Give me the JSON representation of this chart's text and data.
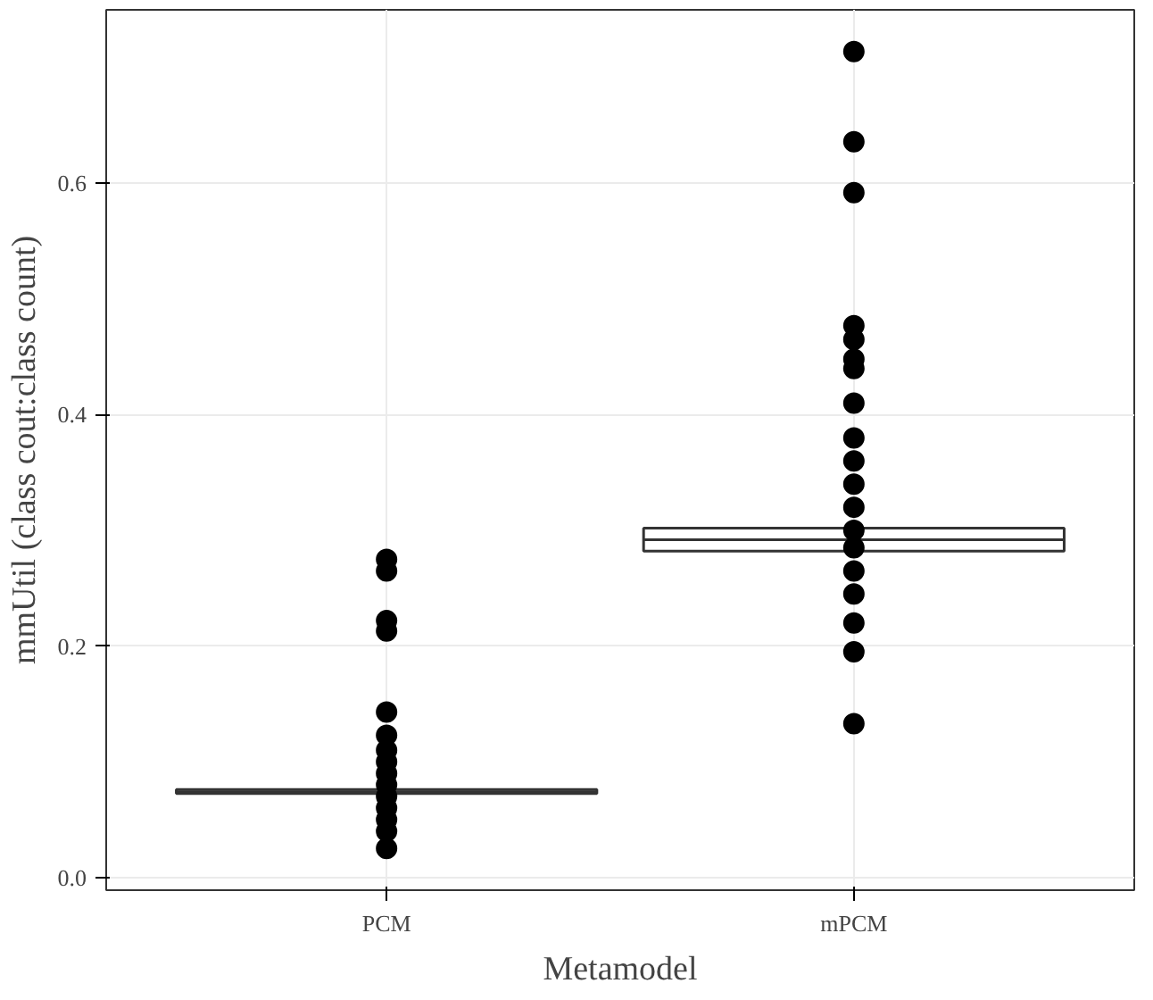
{
  "chart_data": {
    "type": "box",
    "xlabel": "Metamodel",
    "ylabel": "mmUtil (class cout:class count)",
    "categories": [
      "PCM",
      "mPCM"
    ],
    "boxes": [
      {
        "low": 0.0725,
        "q1": 0.0725,
        "median": 0.074,
        "q3": 0.076,
        "high": 0.076
      },
      {
        "low": 0.282,
        "q1": 0.282,
        "median": 0.292,
        "q3": 0.302,
        "high": 0.302
      }
    ],
    "ylim": [
      -0.011,
      0.75
    ],
    "yticks": [
      {
        "value": 0,
        "label": "0.0"
      },
      0.2,
      0.4,
      0.6
    ],
    "grid": true,
    "series": [
      {
        "type": "scatter",
        "color": "#000000",
        "marker": "circle",
        "x": [
          "PCM",
          "PCM",
          "PCM",
          "PCM",
          "PCM",
          "PCM",
          "PCM",
          "PCM",
          "PCM",
          "PCM",
          "PCM",
          "PCM",
          "PCM",
          "PCM",
          "PCM",
          "mPCM",
          "mPCM",
          "mPCM",
          "mPCM",
          "mPCM",
          "mPCM",
          "mPCM",
          "mPCM",
          "mPCM",
          "mPCM",
          "mPCM",
          "mPCM",
          "mPCM",
          "mPCM",
          "mPCM",
          "mPCM",
          "mPCM",
          "mPCM",
          "mPCM"
        ],
        "values": [
          0.275,
          0.265,
          0.222,
          0.213,
          0.143,
          0.123,
          0.11,
          0.1,
          0.09,
          0.08,
          0.07,
          0.06,
          0.05,
          0.04,
          0.025,
          0.714,
          0.636,
          0.592,
          0.477,
          0.465,
          0.448,
          0.44,
          0.41,
          0.38,
          0.36,
          0.34,
          0.32,
          0.3,
          0.285,
          0.265,
          0.245,
          0.22,
          0.195,
          0.133
        ]
      }
    ]
  }
}
